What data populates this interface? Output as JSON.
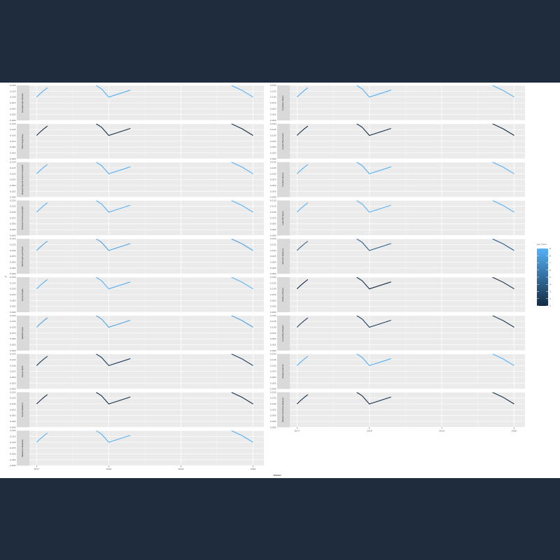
{
  "chart_data": {
    "type": "line",
    "xlabel": "season",
    "ylabel": "y",
    "x_ticks": [
      "2017",
      "2018",
      "2019",
      "2020"
    ],
    "y_ticks": [
      "0.000",
      "0.025",
      "0.050",
      "0.075",
      "0.100",
      "0.125",
      "0.150"
    ],
    "ylim": [
      0,
      0.15
    ],
    "xlim": [
      2016.9,
      2020.15
    ],
    "legend": {
      "title": "par_fracn",
      "position": "right",
      "ticks": [
        "1",
        "2",
        "3",
        "4",
        "5",
        "6",
        "7",
        "8",
        "9"
      ],
      "low_color": "#132b43",
      "high_color": "#56b1f7"
    },
    "x_shape": [
      2017,
      2017.05,
      2017.1,
      2017.15,
      2017.825,
      2017.9,
      2018,
      2018.15,
      2018.3,
      2019.7,
      2019.85,
      2020
    ],
    "y_shape": [
      0.1,
      0.115,
      0.128,
      0.14,
      0.15,
      0.135,
      0.1,
      0.115,
      0.13,
      0.15,
      0.128,
      0.1
    ],
    "panels": [
      {
        "name": "Guadeloupe Islands",
        "color_value": 9
      },
      {
        "name": "Bald Eagle Bay",
        "color_value": 1
      },
      {
        "name": "Hawaii Islands Commonwealth",
        "color_value": 9
      },
      {
        "name": "Ontario Commonwealth",
        "color_value": 9
      },
      {
        "name": "Northeast Landmark",
        "color_value": 8
      },
      {
        "name": "Rocky Peaks",
        "color_value": 9
      },
      {
        "name": "Rabbit Cape",
        "color_value": 8
      },
      {
        "name": "Sandy Spits",
        "color_value": 2
      },
      {
        "name": "South Western",
        "color_value": 1
      },
      {
        "name": "Western Hawaiian",
        "color_value": 9
      },
      {
        "name": "Southern Basin",
        "color_value": 9
      },
      {
        "name": "Coast Mountains",
        "color_value": 1
      },
      {
        "name": "Coastal Rivers",
        "color_value": 9
      },
      {
        "name": "Lake Michigan",
        "color_value": 9
      },
      {
        "name": "Atlantic Regions",
        "color_value": 4
      },
      {
        "name": "Kristina Plains",
        "color_value": 1
      },
      {
        "name": "Columbia Region",
        "color_value": 2
      },
      {
        "name": "Alaska Islands",
        "color_value": 9
      },
      {
        "name": "Western Rockies Reserve",
        "color_value": 1
      }
    ]
  }
}
